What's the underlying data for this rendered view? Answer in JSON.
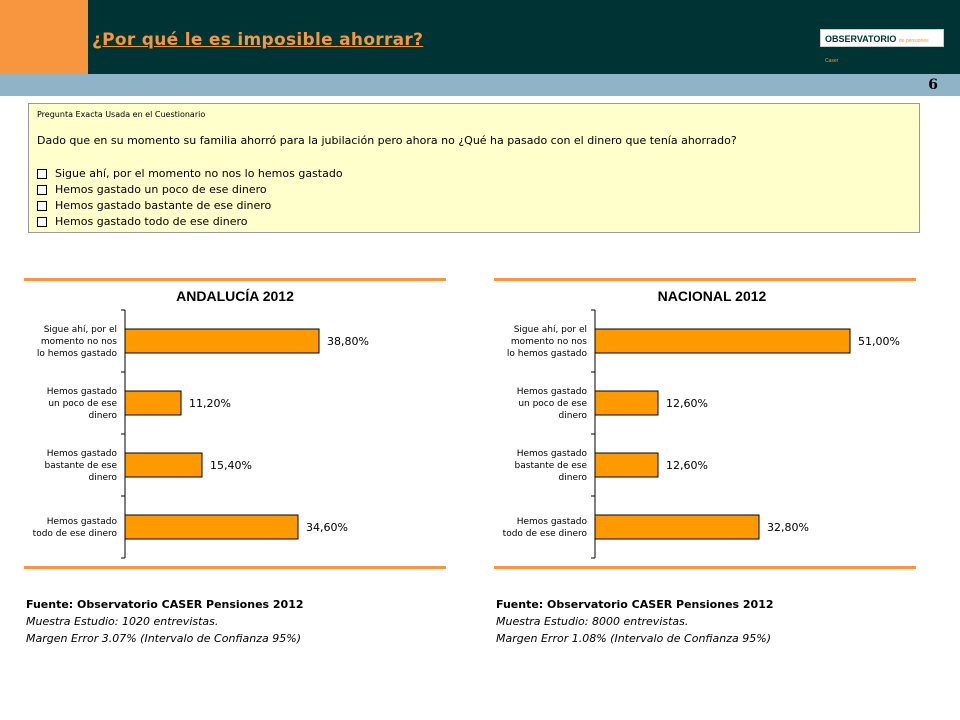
{
  "header": {
    "title": "¿Por qué le es imposible ahorrar?",
    "logo_text": "OBSERVATORIO",
    "logo_sub": "de pensiones Caser",
    "page_number": "6"
  },
  "question": {
    "label": "Pregunta Exacta Usada en el Cuestionario",
    "text": "Dado que en su momento su familia ahorró para la jubilación  pero ahora no ¿Qué ha pasado con el dinero que tenía ahorrado?",
    "options": [
      "Sigue ahí, por el momento no nos lo hemos gastado",
      "Hemos gastado un poco de ese dinero",
      "Hemos gastado bastante de ese dinero",
      "Hemos gastado todo de ese dinero"
    ]
  },
  "colors": {
    "bar": "#ff9900",
    "accent": "#f7963e",
    "header": "#003333",
    "band": "#8fb4c8",
    "question_bg": "#ffffcc"
  },
  "chart_data": [
    {
      "type": "bar",
      "orientation": "horizontal",
      "title": "ANDALUCÍA 2012",
      "categories": [
        [
          "Sigue ahí, por el",
          "momento no nos",
          "lo hemos gastado"
        ],
        [
          "Hemos gastado",
          "un poco de ese",
          "dinero"
        ],
        [
          "Hemos gastado",
          "bastante de ese",
          "dinero"
        ],
        [
          "Hemos gastado",
          "todo de ese dinero"
        ]
      ],
      "values": [
        38.8,
        11.2,
        15.4,
        34.6
      ],
      "labels": [
        "38,80%",
        "11,20%",
        "15,40%",
        "34,60%"
      ],
      "xlim": [
        0,
        60
      ]
    },
    {
      "type": "bar",
      "orientation": "horizontal",
      "title": "NACIONAL 2012",
      "categories": [
        [
          "Sigue ahí, por el",
          "momento no nos",
          "lo hemos gastado"
        ],
        [
          "Hemos gastado",
          "un poco de ese",
          "dinero"
        ],
        [
          "Hemos gastado",
          "bastante de ese",
          "dinero"
        ],
        [
          "Hemos gastado",
          "todo de ese dinero"
        ]
      ],
      "values": [
        51.0,
        12.6,
        12.6,
        32.8
      ],
      "labels": [
        "51,00%",
        "12,60%",
        "12,60%",
        "32,80%"
      ],
      "xlim": [
        0,
        60
      ]
    }
  ],
  "sources": [
    {
      "title": "Fuente: Observatorio CASER Pensiones 2012",
      "sample": "Muestra Estudio: 1020 entrevistas.",
      "margin": "Margen Error 3.07% (Intervalo de Confianza 95%)"
    },
    {
      "title": "Fuente: Observatorio CASER Pensiones 2012",
      "sample": "Muestra Estudio: 8000 entrevistas.",
      "margin": "Margen Error 1.08% (Intervalo de Confianza 95%)"
    }
  ]
}
